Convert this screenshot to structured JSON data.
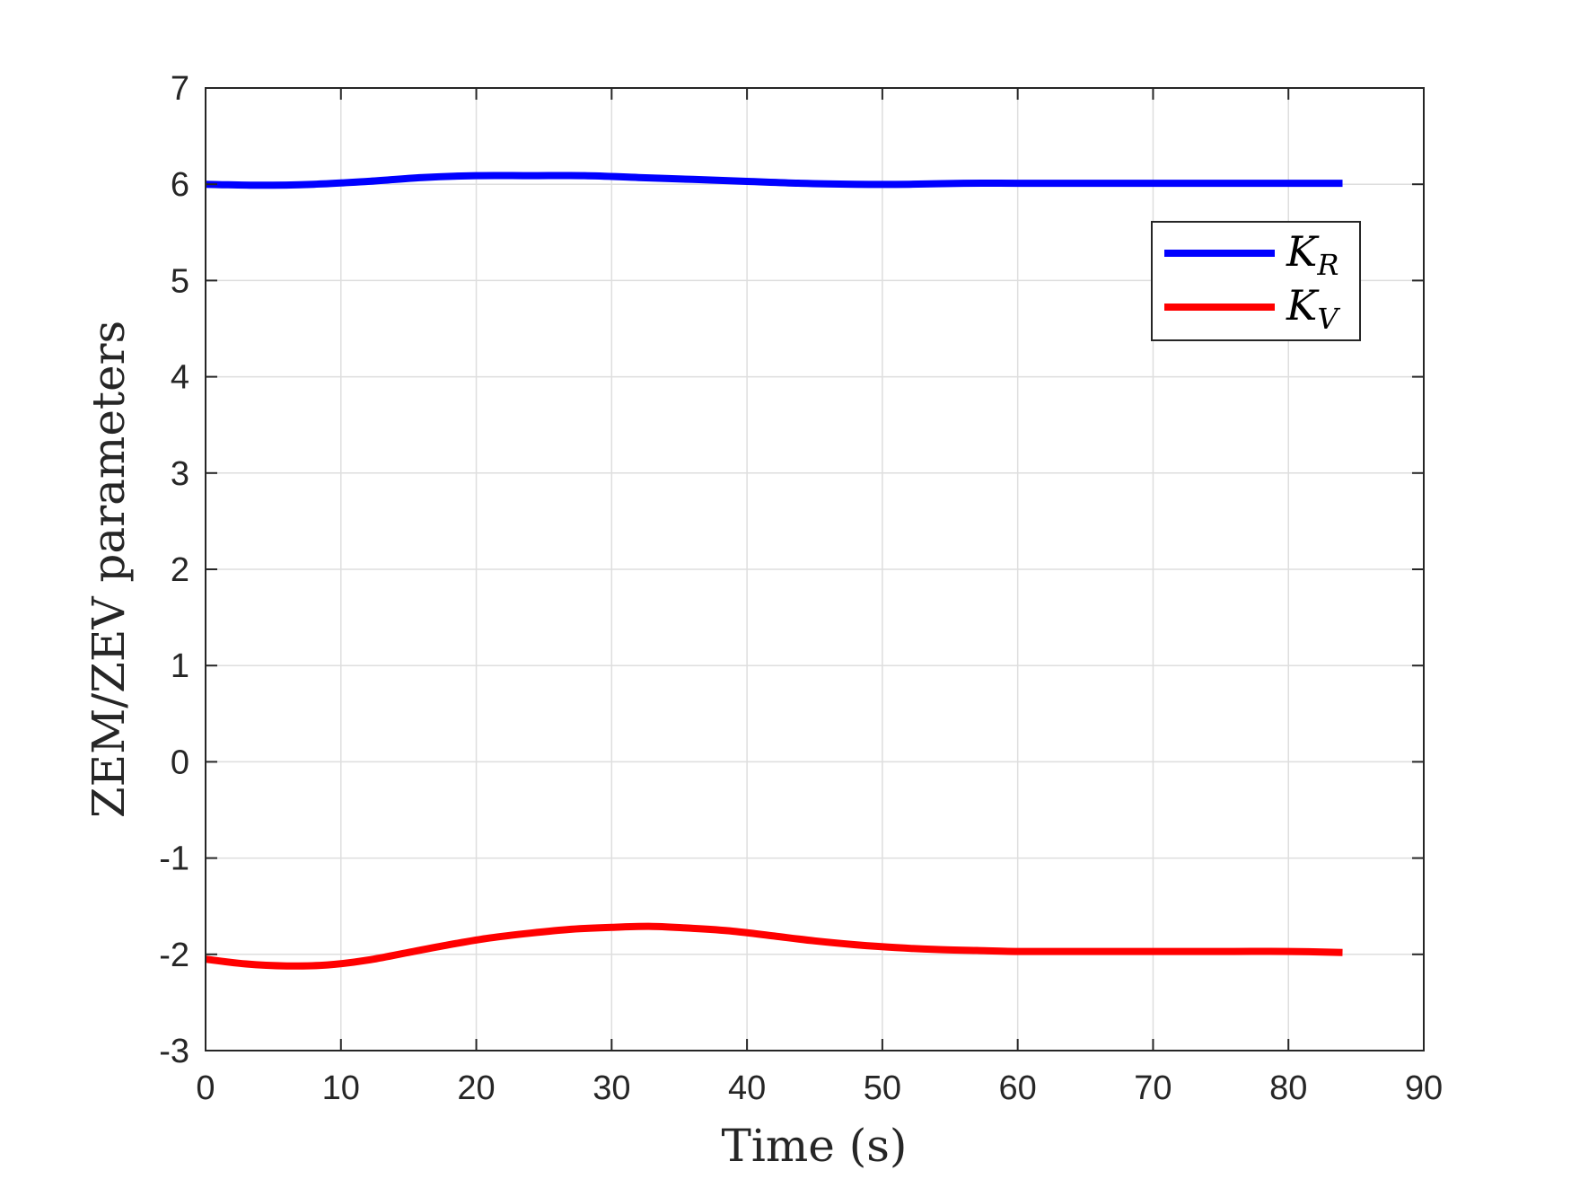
{
  "chart_data": {
    "type": "line",
    "xlabel": "Time (s)",
    "ylabel": "ZEM/ZEV parameters",
    "xlim": [
      0,
      90
    ],
    "ylim": [
      -3,
      7
    ],
    "xticks": [
      0,
      10,
      20,
      30,
      40,
      50,
      60,
      70,
      80,
      90
    ],
    "yticks": [
      -3,
      -2,
      -1,
      0,
      1,
      2,
      3,
      4,
      5,
      6,
      7
    ],
    "grid": true,
    "legend_position": "top-right",
    "series": [
      {
        "name": "K_R",
        "label_main": "K",
        "label_sub": "R",
        "color": "#0000ff",
        "x": [
          0,
          4,
          8,
          12,
          16,
          20,
          24,
          28,
          32,
          36,
          40,
          44,
          48,
          52,
          56,
          60,
          64,
          68,
          72,
          76,
          80,
          84
        ],
        "y": [
          6.0,
          5.99,
          6.0,
          6.03,
          6.07,
          6.09,
          6.09,
          6.09,
          6.07,
          6.05,
          6.03,
          6.01,
          6.0,
          6.0,
          6.01,
          6.01,
          6.01,
          6.01,
          6.01,
          6.01,
          6.01,
          6.01
        ]
      },
      {
        "name": "K_V",
        "label_main": "K",
        "label_sub": "V",
        "color": "#ff0000",
        "x": [
          0,
          3,
          6,
          9,
          12,
          15,
          18,
          21,
          24,
          27,
          30,
          33,
          36,
          39,
          42,
          45,
          48,
          51,
          54,
          57,
          60,
          64,
          68,
          72,
          76,
          80,
          84
        ],
        "y": [
          -2.05,
          -2.1,
          -2.12,
          -2.11,
          -2.06,
          -1.98,
          -1.9,
          -1.83,
          -1.78,
          -1.74,
          -1.72,
          -1.71,
          -1.73,
          -1.76,
          -1.81,
          -1.86,
          -1.9,
          -1.93,
          -1.95,
          -1.96,
          -1.97,
          -1.97,
          -1.97,
          -1.97,
          -1.97,
          -1.97,
          -1.98
        ]
      }
    ]
  }
}
